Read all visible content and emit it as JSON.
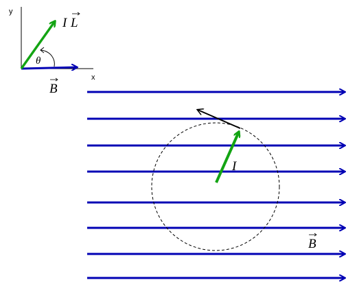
{
  "inset": {
    "y_axis_label": "y",
    "x_axis_label": "x",
    "il_label_letter": "I",
    "il_label_vector": "L",
    "angle_label": "θ",
    "b_label": "B"
  },
  "main": {
    "field_line_count": 8,
    "current_label": "I",
    "b_label": "B"
  },
  "colors": {
    "field": "#0000b4",
    "current": "#13a413",
    "force": "#000000",
    "circle": "#000000"
  },
  "icons": {
    "vector_arrow": "arrow-over-letter"
  }
}
